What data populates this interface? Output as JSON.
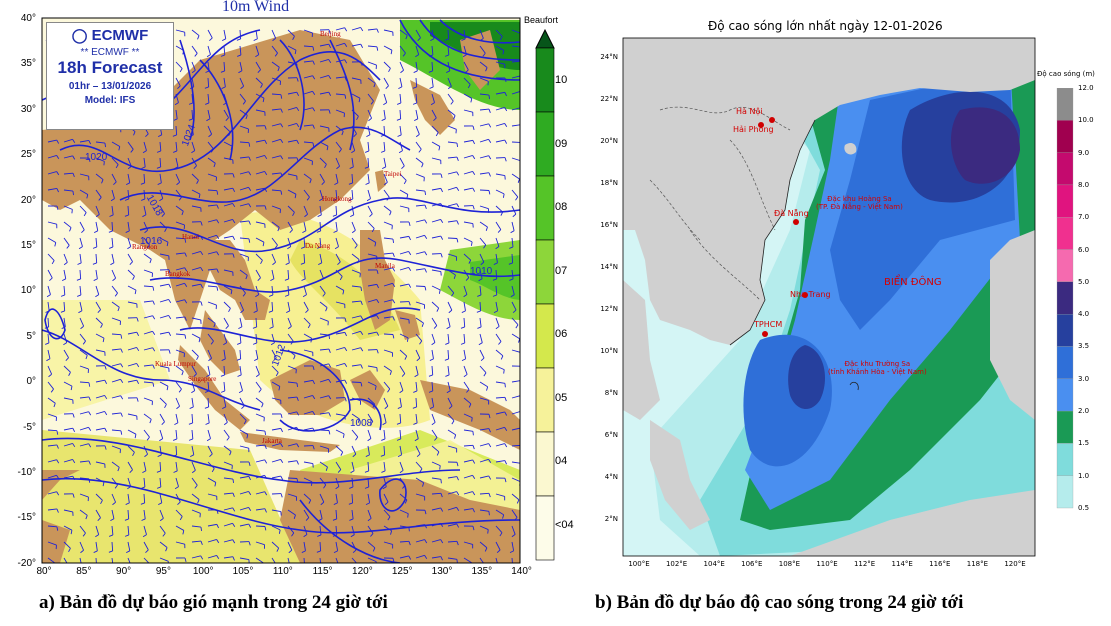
{
  "left_map": {
    "title": "10m Wind",
    "logo": {
      "brand": "ECMWF",
      "sub": "** ECMWF **",
      "forecast": "18h Forecast",
      "datetime": "01hr – 13/01/2026",
      "model": "Model: IFS"
    },
    "y_ticks": [
      "40°",
      "35°",
      "30°",
      "25°",
      "20°",
      "15°",
      "10°",
      "5°",
      "0°",
      "-5°",
      "-10°",
      "-15°",
      "-20°"
    ],
    "x_ticks": [
      "80°",
      "85°",
      "90°",
      "95°",
      "100°",
      "105°",
      "110°",
      "115°",
      "120°",
      "125°",
      "130°",
      "135°",
      "140°"
    ],
    "colorbar": {
      "title": "Beaufort",
      "labels": [
        "10",
        "09",
        "08",
        "07",
        "06",
        "05",
        "04",
        "<04"
      ],
      "colors": [
        "#0a6b16",
        "#188a1c",
        "#2fab22",
        "#55c428",
        "#8dd63a",
        "#d4e84c",
        "#f6f29a",
        "#fbf8d0",
        "#fdfce9"
      ]
    },
    "cities": [
      "Beijing",
      "Taipei",
      "Hongkong",
      "Hanoi",
      "Rangoon",
      "Manila",
      "Bangkok",
      "Kuala Lumpur",
      "Singapore",
      "Jakarta",
      "Da Nang"
    ],
    "isobars": [
      "1020",
      "1024",
      "1012",
      "1018",
      "1016",
      "1010",
      "1008"
    ],
    "colors": {
      "land": "#c9955a",
      "sea_calm": "#fcf8dc",
      "isobar": "#1e22d6",
      "barb": "#1e22d6"
    }
  },
  "right_map": {
    "title": "Độ cao sóng lớn nhất ngày 12-01-2026",
    "y_ticks": [
      "24°N",
      "22°N",
      "20°N",
      "18°N",
      "16°N",
      "14°N",
      "12°N",
      "10°N",
      "8°N",
      "6°N",
      "4°N",
      "2°N"
    ],
    "x_ticks": [
      "100°E",
      "102°E",
      "104°E",
      "106°E",
      "108°E",
      "110°E",
      "112°E",
      "114°E",
      "116°E",
      "118°E",
      "120°E"
    ],
    "colorbar": {
      "title": "Độ cao sóng (m)",
      "labels": [
        "12.0",
        "10.0",
        "9.0",
        "8.0",
        "7.0",
        "6.0",
        "5.0",
        "4.0",
        "3.5",
        "3.0",
        "2.0",
        "1.5",
        "1.0",
        "0.5"
      ],
      "colors": [
        "#8c8c8c",
        "#a0004f",
        "#c40a6e",
        "#e0147f",
        "#f0308f",
        "#f56aaf",
        "#3b2a80",
        "#26409e",
        "#2f6fd8",
        "#4a8ff0",
        "#1a9a55",
        "#7fdcdc",
        "#b5ecec",
        "#d4f5f5"
      ]
    },
    "places": [
      "Hà Nội",
      "Hải Phòng",
      "Đà Nẵng",
      "Nha Trang",
      "TPHCM"
    ],
    "sea_label": "BIỂN ĐÔNG",
    "archipelago_1": "Đặc khu Hoàng Sa\n(TP. Đà Nẵng - Việt Nam)",
    "archipelago_2": "Đặc khu Trường Sa\n(tỉnh Khánh Hòa - Việt Nam)",
    "colors": {
      "land": "#d0d0d0",
      "border": "#555555"
    }
  },
  "captions": {
    "left": "a) Bản đồ dự báo gió mạnh trong 24 giờ tới",
    "right": "b) Bản đồ dự báo độ cao sóng trong 24 giờ tới"
  }
}
